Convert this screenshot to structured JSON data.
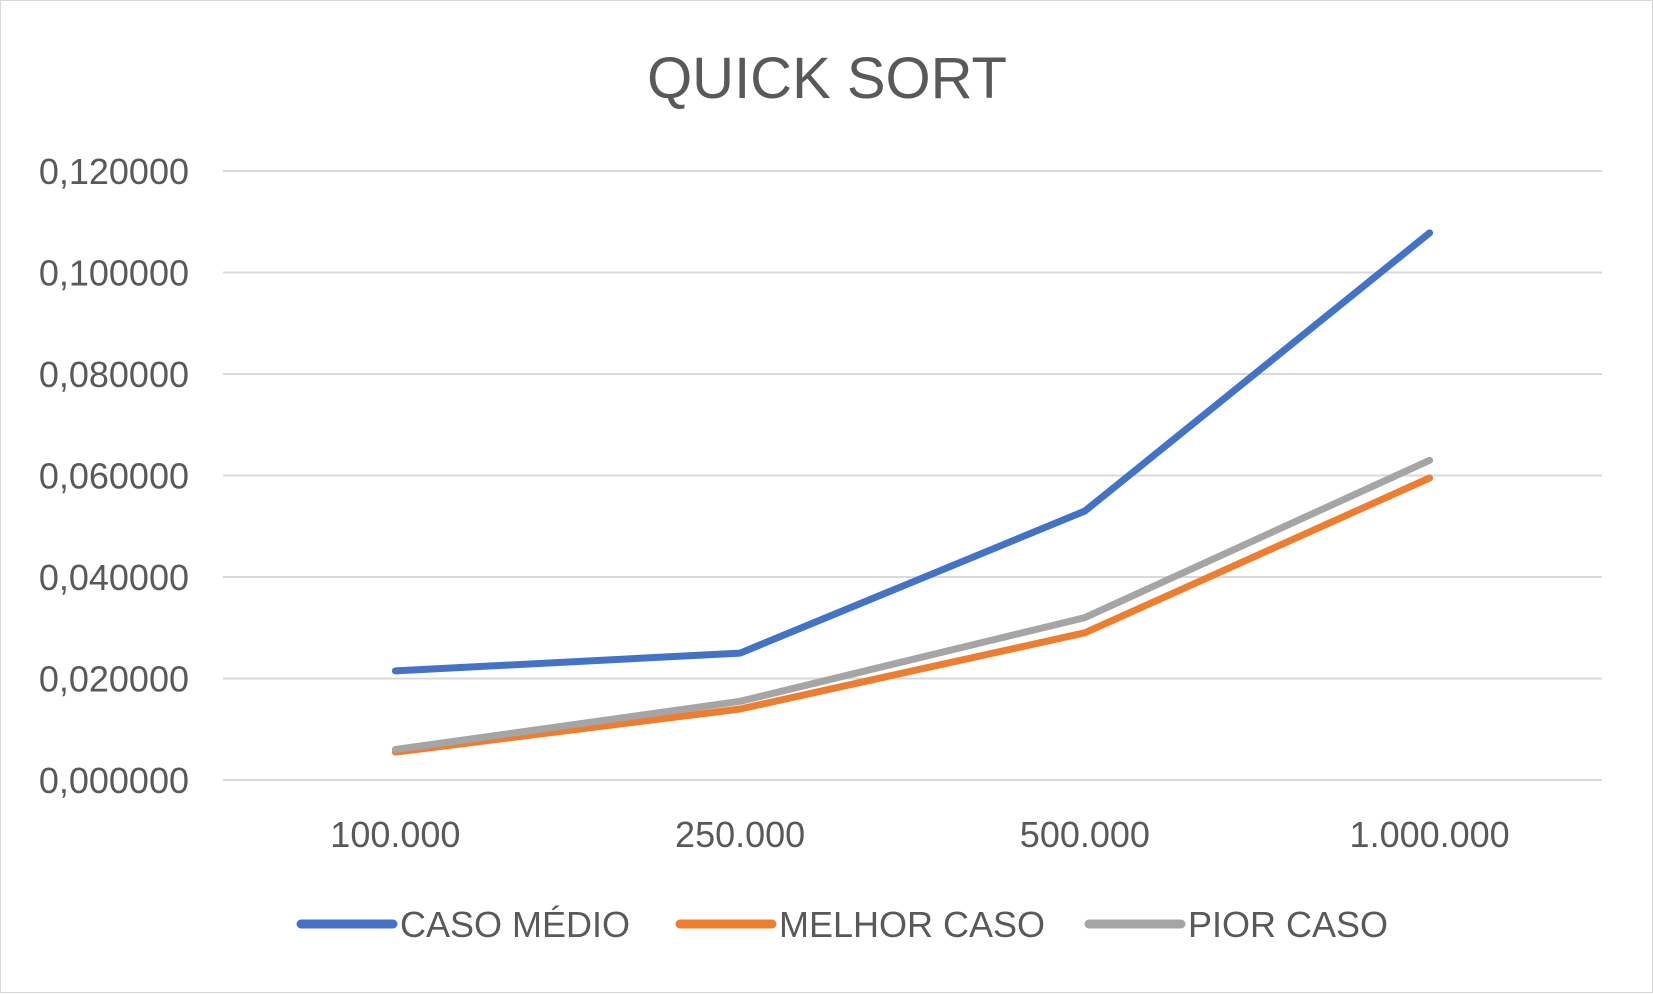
{
  "chart_data": {
    "type": "line",
    "title": "QUICK SORT",
    "xlabel": "",
    "ylabel": "",
    "categories": [
      "100.000",
      "250.000",
      "500.000",
      "1.000.000"
    ],
    "y_ticks": [
      "0,000000",
      "0,020000",
      "0,040000",
      "0,060000",
      "0,080000",
      "0,100000",
      "0,120000"
    ],
    "ylim": [
      0,
      0.12
    ],
    "grid": true,
    "legend_position": "bottom",
    "series": [
      {
        "name": "CASO MÉDIO",
        "color": "#4472C4",
        "values": [
          0.0215,
          0.025,
          0.053,
          0.1078
        ]
      },
      {
        "name": "MELHOR CASO",
        "color": "#ED7D31",
        "values": [
          0.0055,
          0.014,
          0.029,
          0.0595
        ]
      },
      {
        "name": "PIOR CASO",
        "color": "#A5A5A5",
        "values": [
          0.006,
          0.0155,
          0.032,
          0.063
        ]
      }
    ]
  }
}
